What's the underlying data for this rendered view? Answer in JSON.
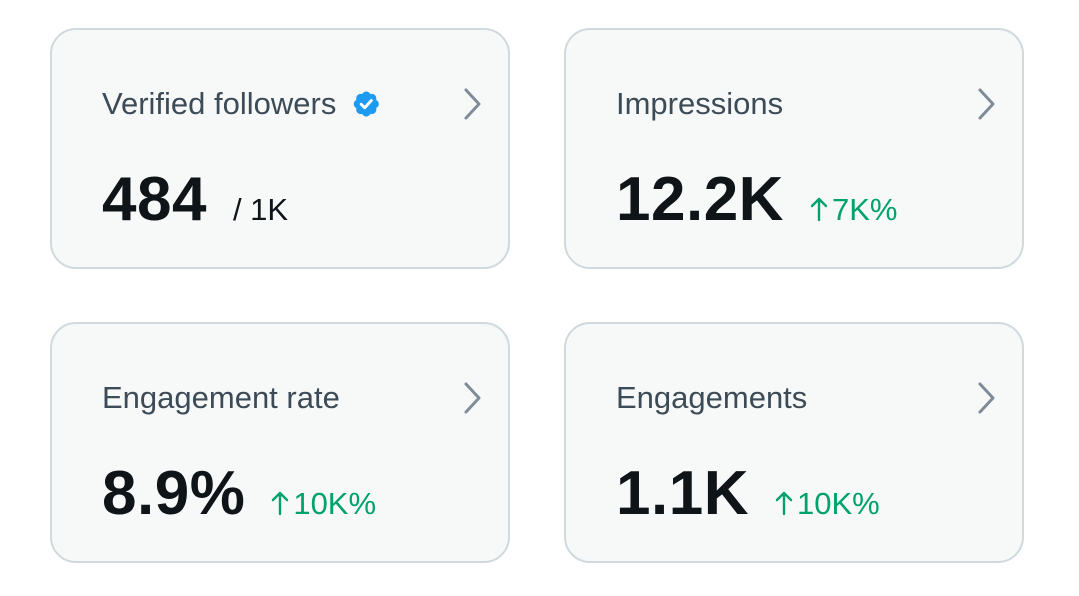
{
  "cards": [
    {
      "title": "Verified followers",
      "badge_icon": "verified-badge-icon",
      "value": "484",
      "suffix": "/ 1K"
    },
    {
      "title": "Impressions",
      "value": "12.2K",
      "delta": "7K%"
    },
    {
      "title": "Engagement rate",
      "value": "8.9%",
      "delta": "10K%"
    },
    {
      "title": "Engagements",
      "value": "1.1K",
      "delta": "10K%"
    }
  ],
  "colors": {
    "card_background": "#f7f9f9",
    "card_border": "#cfd9de",
    "title_text": "#3d4b57",
    "value_text": "#0f1419",
    "positive_delta": "#00a26b",
    "badge_blue": "#1d9bf0",
    "chevron": "#7f8c98"
  }
}
